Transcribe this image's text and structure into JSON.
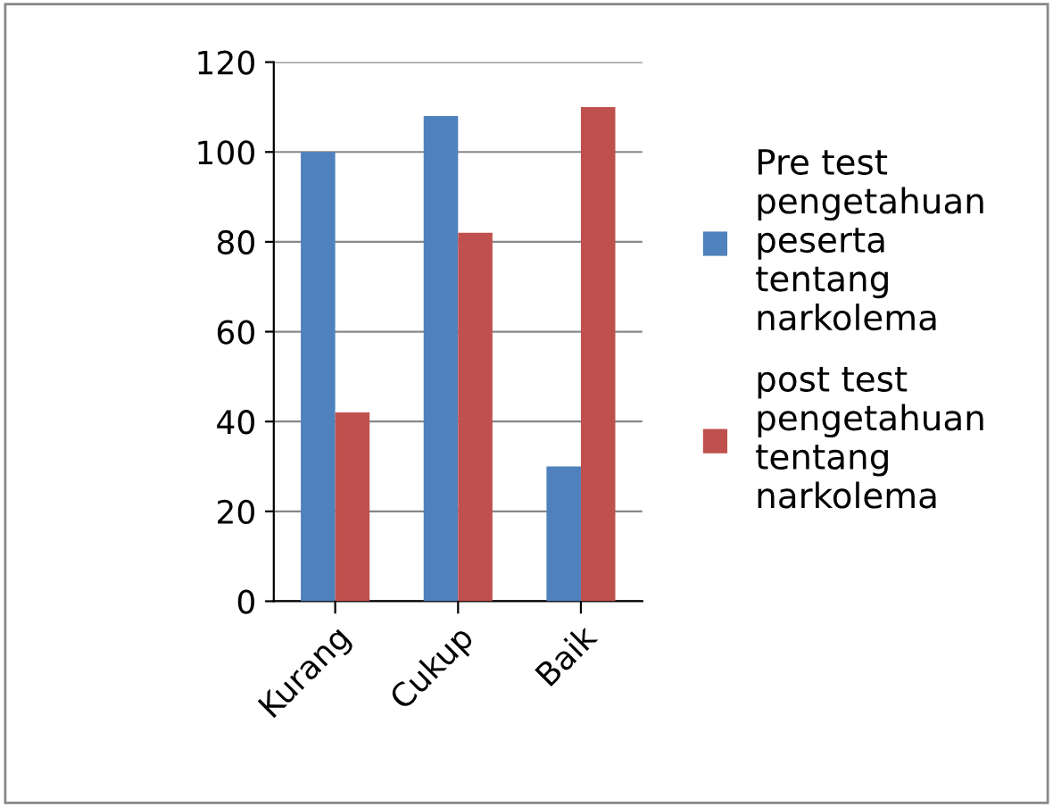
{
  "chart_data": {
    "type": "bar",
    "categories": [
      "Kurang",
      "Cukup",
      "Baik"
    ],
    "series": [
      {
        "name": "Pre test\npengetahuan\npeserta\ntentang\nnarkolema",
        "color": "#4f81bd",
        "values": [
          100,
          108,
          30
        ]
      },
      {
        "name": "post test\npengetahuan\ntentang\nnarkolema",
        "color": "#c0504d",
        "values": [
          42,
          82,
          110
        ]
      }
    ],
    "ylim": [
      0,
      120
    ],
    "yticks": [
      0,
      20,
      40,
      60,
      80,
      100,
      120
    ],
    "grid": "y",
    "legend": "right"
  }
}
